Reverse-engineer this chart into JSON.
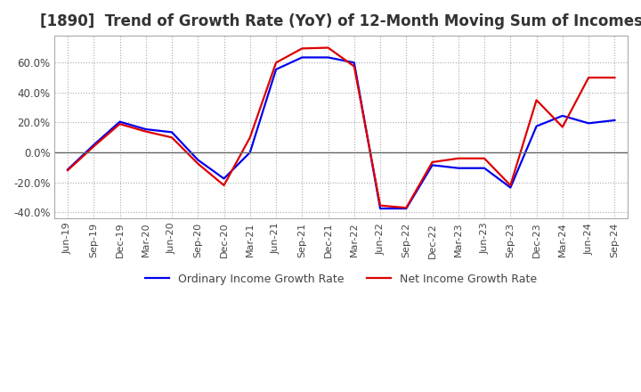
{
  "title": "[1890]  Trend of Growth Rate (YoY) of 12-Month Moving Sum of Incomes",
  "title_fontsize": 12,
  "background_color": "#ffffff",
  "grid_color": "#aaaaaa",
  "ylim": [
    -0.44,
    0.78
  ],
  "yticks": [
    -0.4,
    -0.2,
    0.0,
    0.2,
    0.4,
    0.6
  ],
  "ytick_labels": [
    "-40.0%",
    "-20.0%",
    "0.0%",
    "20.0%",
    "40.0%",
    "60.0%"
  ],
  "x_labels": [
    "Jun-19",
    "Sep-19",
    "Dec-19",
    "Mar-20",
    "Jun-20",
    "Sep-20",
    "Dec-20",
    "Mar-21",
    "Jun-21",
    "Sep-21",
    "Dec-21",
    "Mar-22",
    "Jun-22",
    "Sep-22",
    "Dec-22",
    "Mar-23",
    "Jun-23",
    "Sep-23",
    "Dec-23",
    "Mar-24",
    "Jun-24",
    "Sep-24"
  ],
  "ordinary_income": [
    -0.115,
    0.05,
    0.205,
    0.155,
    0.135,
    -0.05,
    -0.175,
    0.0,
    0.555,
    0.635,
    0.635,
    0.6,
    -0.375,
    -0.375,
    -0.085,
    -0.105,
    -0.105,
    -0.235,
    0.175,
    0.245,
    0.195,
    0.215
  ],
  "net_income": [
    -0.12,
    0.04,
    0.19,
    0.14,
    0.1,
    -0.075,
    -0.22,
    0.1,
    0.6,
    0.695,
    0.7,
    0.575,
    -0.355,
    -0.37,
    -0.065,
    -0.04,
    -0.04,
    -0.22,
    0.35,
    0.17,
    0.5,
    0.5
  ],
  "line_color_ordinary": "#0000ee",
  "line_color_net": "#dd0000",
  "line_width": 1.6,
  "legend_labels": [
    "Ordinary Income Growth Rate",
    "Net Income Growth Rate"
  ],
  "zero_line_color": "#666666"
}
